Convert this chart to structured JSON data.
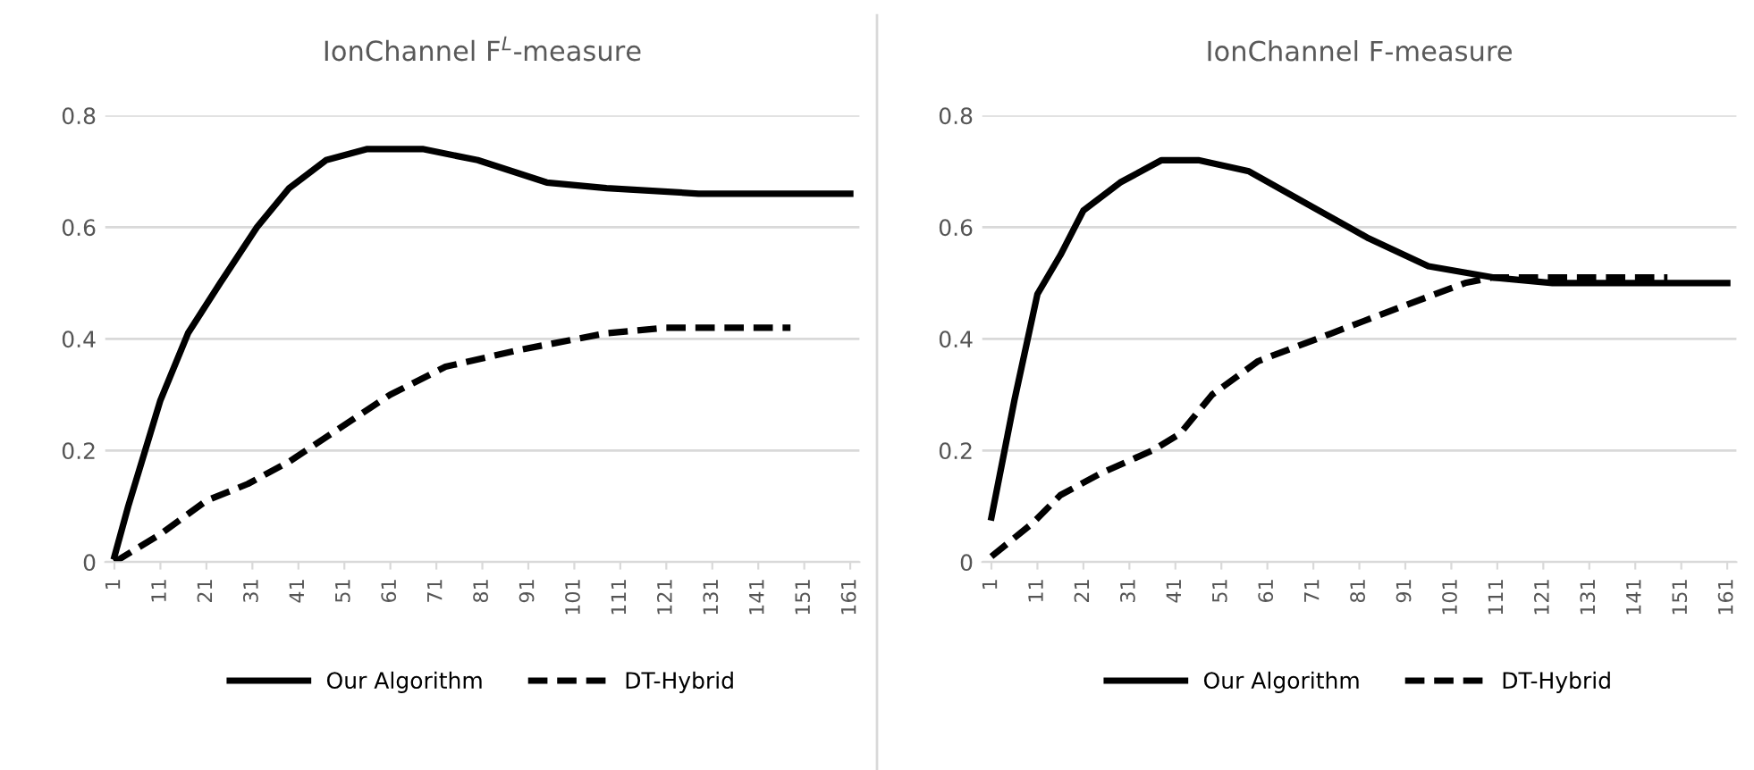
{
  "chart_data": [
    {
      "type": "line",
      "title": "IonChannel F$^{L}$-measure",
      "xlim": [
        -1,
        163
      ],
      "xticks": [
        1,
        11,
        21,
        31,
        41,
        51,
        61,
        71,
        81,
        91,
        101,
        111,
        121,
        131,
        141,
        151,
        161
      ],
      "ylim": [
        0,
        0.8
      ],
      "yticks": [
        0,
        0.2,
        0.4,
        0.6,
        0.8
      ],
      "grid": "y",
      "legend": "bottom",
      "marker": "none",
      "series": [
        {
          "name": "Our Algorithm",
          "color": "#000000",
          "line_style": "solid",
          "x": [
            1,
            4,
            11,
            17,
            24,
            32,
            39,
            47,
            56,
            68,
            80,
            95,
            108,
            128,
            161
          ],
          "values": [
            0.01,
            0.1,
            0.29,
            0.41,
            0.5,
            0.6,
            0.67,
            0.72,
            0.74,
            0.74,
            0.72,
            0.68,
            0.67,
            0.66,
            0.66
          ]
        },
        {
          "name": "DT-Hybrid",
          "color": "#000000",
          "line_style": "dashed",
          "x": [
            1,
            11,
            21,
            30,
            39,
            50,
            61,
            73,
            89,
            108,
            121,
            148
          ],
          "values": [
            0,
            0.05,
            0.11,
            0.14,
            0.18,
            0.24,
            0.3,
            0.35,
            0.38,
            0.41,
            0.42,
            0.42
          ]
        }
      ]
    },
    {
      "type": "line",
      "title": "IonChannel F-measure",
      "xlim": [
        -1,
        163
      ],
      "xticks": [
        1,
        11,
        21,
        31,
        41,
        51,
        61,
        71,
        81,
        91,
        101,
        111,
        121,
        131,
        141,
        151,
        161
      ],
      "ylim": [
        0,
        0.8
      ],
      "yticks": [
        0,
        0.2,
        0.4,
        0.6,
        0.8
      ],
      "grid": "y",
      "legend": "bottom",
      "marker": "none",
      "series": [
        {
          "name": "Our Algorithm",
          "color": "#000000",
          "line_style": "solid",
          "x": [
            1,
            6,
            11,
            16,
            21,
            29,
            38,
            46,
            57,
            70,
            83,
            96,
            110,
            123,
            161
          ],
          "values": [
            0.08,
            0.29,
            0.48,
            0.55,
            0.63,
            0.68,
            0.72,
            0.72,
            0.7,
            0.64,
            0.58,
            0.53,
            0.51,
            0.5,
            0.5
          ]
        },
        {
          "name": "DT-Hybrid",
          "color": "#000000",
          "line_style": "dashed",
          "x": [
            1,
            10,
            16,
            25,
            36,
            42,
            49,
            59,
            75,
            91,
            104,
            110,
            148
          ],
          "values": [
            0.01,
            0.07,
            0.12,
            0.16,
            0.2,
            0.23,
            0.3,
            0.36,
            0.41,
            0.46,
            0.5,
            0.51,
            0.51
          ]
        }
      ]
    }
  ]
}
